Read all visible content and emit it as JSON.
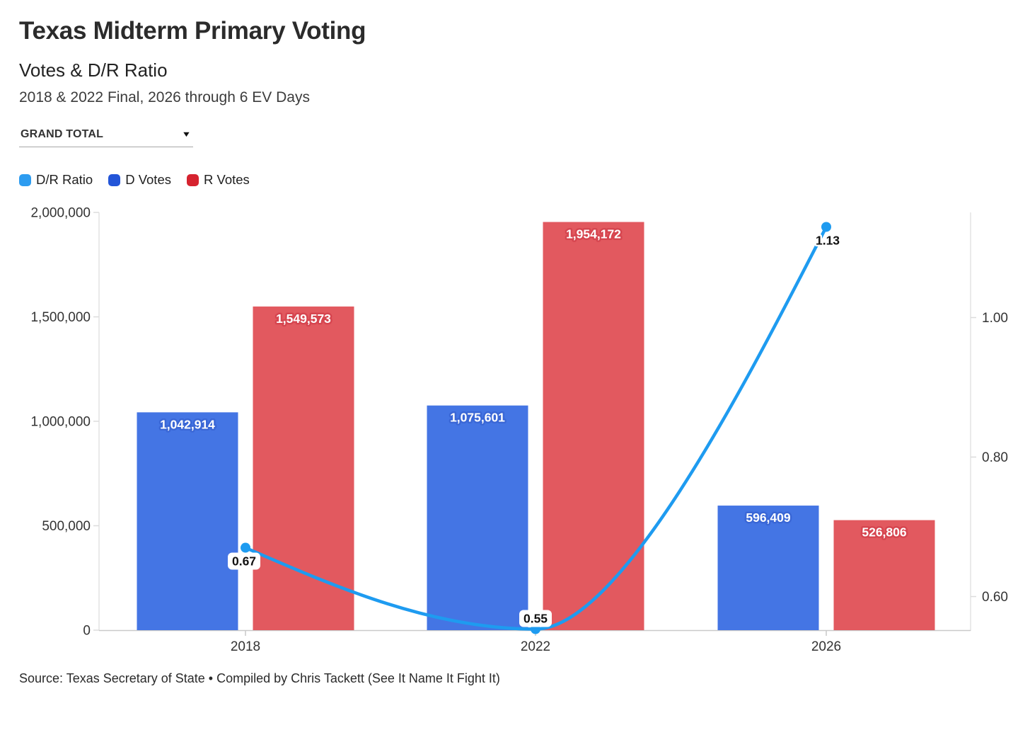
{
  "header": {
    "title": "Texas Midterm Primary Voting",
    "subtitle": "Votes & D/R Ratio",
    "description": "2018 & 2022 Final, 2026 through 6 EV Days"
  },
  "filter": {
    "selected_value": "GRAND TOTAL",
    "caret_icon": "caret-down",
    "caret_glyph": "▼"
  },
  "legend": {
    "items": [
      {
        "label": "D/R Ratio",
        "color": "#2D9CF0"
      },
      {
        "label": "D Votes",
        "color": "#2355D8"
      },
      {
        "label": "R Votes",
        "color": "#D6232F"
      }
    ]
  },
  "source_line": "Source: Texas Secretary of State • Compiled by Chris Tackett (See It Name It Fight It)",
  "chart_data": {
    "type": "bar+line combo",
    "categories": [
      "2018",
      "2022",
      "2026"
    ],
    "series": [
      {
        "name": "D Votes",
        "type": "bar",
        "axis": "left",
        "color": "#4475E4",
        "halo": "#3a67d6",
        "values": [
          1042914,
          1075601,
          596409
        ],
        "value_labels": [
          "1,042,914",
          "1,075,601",
          "596,409"
        ]
      },
      {
        "name": "R Votes",
        "type": "bar",
        "axis": "left",
        "color": "#E2595F",
        "halo": "#d6454f",
        "values": [
          1549573,
          1954172,
          526806
        ],
        "value_labels": [
          "1,549,573",
          "1,954,172",
          "526,806"
        ]
      },
      {
        "name": "D/R Ratio",
        "type": "line",
        "axis": "right",
        "color": "#1E9BF0",
        "values": [
          0.67,
          0.55,
          1.13
        ],
        "value_labels": [
          "0.67",
          "0.55",
          "1.13"
        ]
      }
    ],
    "left_axis": {
      "min": 0,
      "max": 2000000,
      "ticks": [
        {
          "value": 0,
          "label": "0"
        },
        {
          "value": 500000,
          "label": "500,000"
        },
        {
          "value": 1000000,
          "label": "1,000,000"
        },
        {
          "value": 1500000,
          "label": "1,500,000"
        },
        {
          "value": 2000000,
          "label": "2,000,000"
        }
      ]
    },
    "right_axis": {
      "ticks": [
        {
          "value": 0.6,
          "label": "0.60"
        },
        {
          "value": 0.8,
          "label": "0.80"
        },
        {
          "value": 1.0,
          "label": "1.00"
        }
      ]
    },
    "grid": false,
    "legend_position": "top-left"
  }
}
